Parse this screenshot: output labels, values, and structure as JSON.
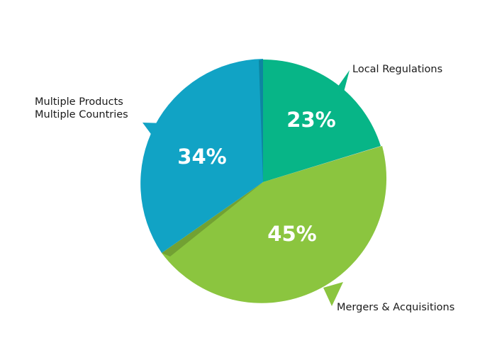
{
  "chart_data": {
    "type": "pie",
    "title": "",
    "slices": [
      {
        "label": "Local Regulations",
        "value": 23,
        "value_label": "23%",
        "color": "#07b587"
      },
      {
        "label": "Mergers & Acquisitions",
        "value": 45,
        "value_label": "45%",
        "color": "#8bc53f"
      },
      {
        "label": "Multiple Products\nMultiple Countries",
        "value": 34,
        "value_label": "34%",
        "color": "#11a3c5"
      }
    ],
    "legend": "none",
    "labels": "outside with callout tails"
  }
}
